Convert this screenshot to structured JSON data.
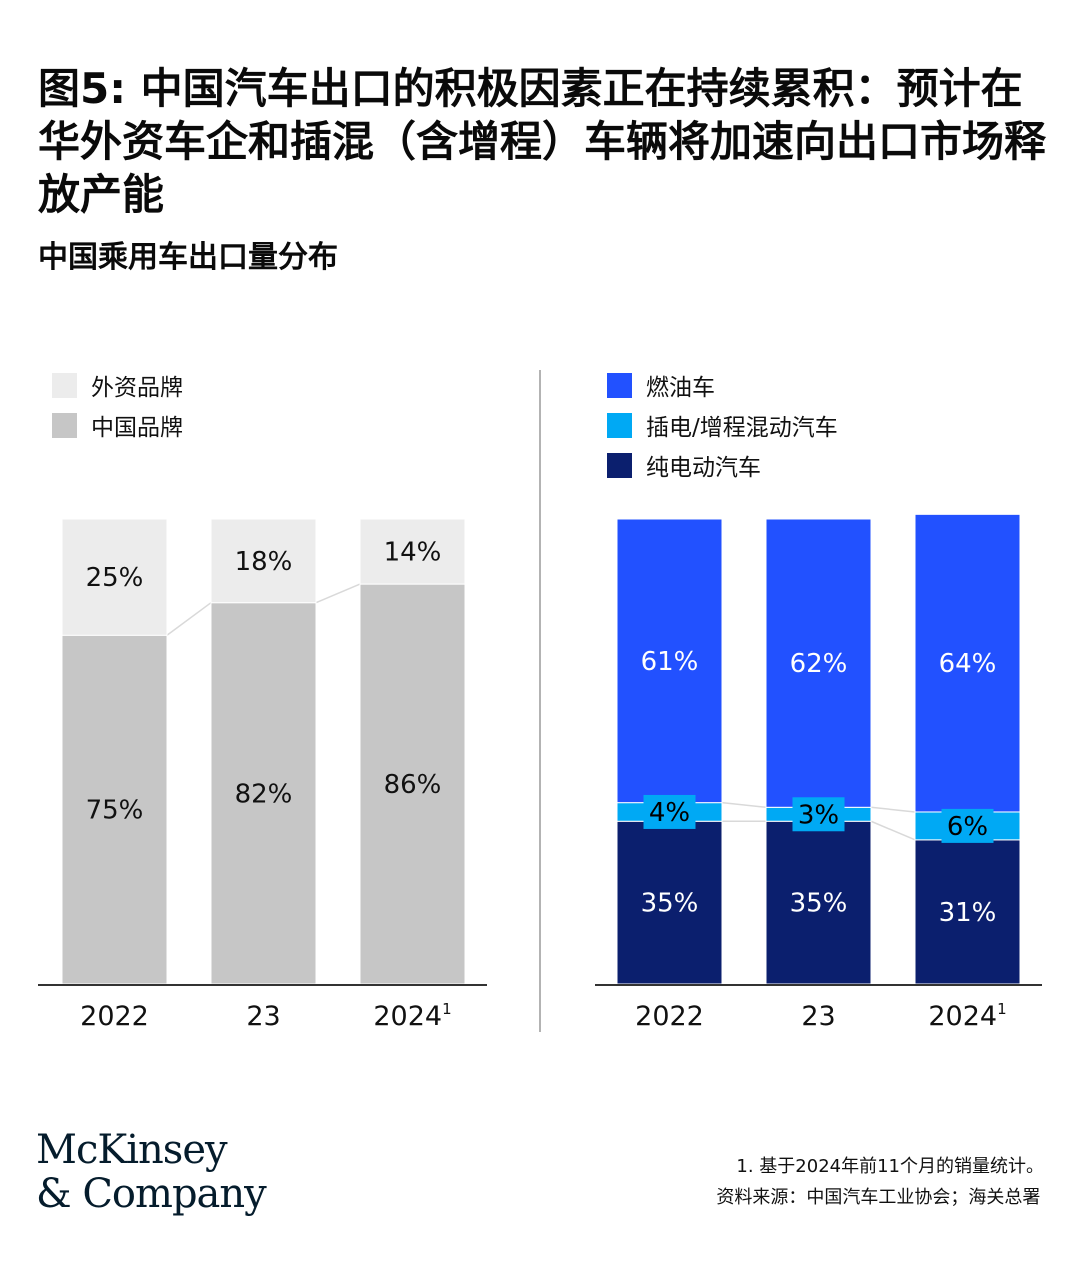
{
  "title": "图5: 中国汽车出口的积极因素正在持续累积：预计在华外资车企和插混（含增程）车辆将加速向出口市场释放产能",
  "subtitle": "中国乘用车出口量分布",
  "colors": {
    "foreign_brand": "#ececec",
    "chinese_brand": "#c6c6c6",
    "ice": "#2251ff",
    "phev": "#00a9f4",
    "bev": "#0b1f6e",
    "axis": "#333333"
  },
  "chart_data": [
    {
      "type": "bar",
      "stacked": true,
      "categories": [
        "2022",
        "23",
        "2024"
      ],
      "category_superscripts": [
        "",
        "",
        "1"
      ],
      "series": [
        {
          "name": "中国品牌",
          "values": [
            75,
            82,
            86
          ],
          "color": "#c6c6c6",
          "labels": [
            "75%",
            "82%",
            "86%"
          ]
        },
        {
          "name": "外资品牌",
          "values": [
            25,
            18,
            14
          ],
          "color": "#ececec",
          "labels": [
            "25%",
            "18%",
            "14%"
          ]
        }
      ],
      "ylim": [
        0,
        100
      ],
      "legend_position": "top-left"
    },
    {
      "type": "bar",
      "stacked": true,
      "categories": [
        "2022",
        "23",
        "2024"
      ],
      "category_superscripts": [
        "",
        "",
        "1"
      ],
      "series": [
        {
          "name": "纯电动汽车",
          "values": [
            35,
            35,
            31
          ],
          "color": "#0b1f6e",
          "labels": [
            "35%",
            "35%",
            "31%"
          ]
        },
        {
          "name": "插电/增程混动汽车",
          "values": [
            4,
            3,
            6
          ],
          "color": "#00a9f4",
          "labels": [
            "4%",
            "3%",
            "6%"
          ]
        },
        {
          "name": "燃油车",
          "values": [
            61,
            62,
            64
          ],
          "color": "#2251ff",
          "labels": [
            "61%",
            "62%",
            "64%"
          ]
        }
      ],
      "ylim": [
        0,
        100
      ],
      "legend_position": "top-left"
    }
  ],
  "legend_left": [
    "外资品牌",
    "中国品牌"
  ],
  "legend_right": [
    "燃油车",
    "插电/增程混动汽车",
    "纯电动汽车"
  ],
  "logo": {
    "line1": "McKinsey",
    "line2": "& Company"
  },
  "footnote": {
    "note": "1.   基于2024年前11个月的销量统计。",
    "source": "资料来源：中国汽车工业协会；海关总署"
  }
}
